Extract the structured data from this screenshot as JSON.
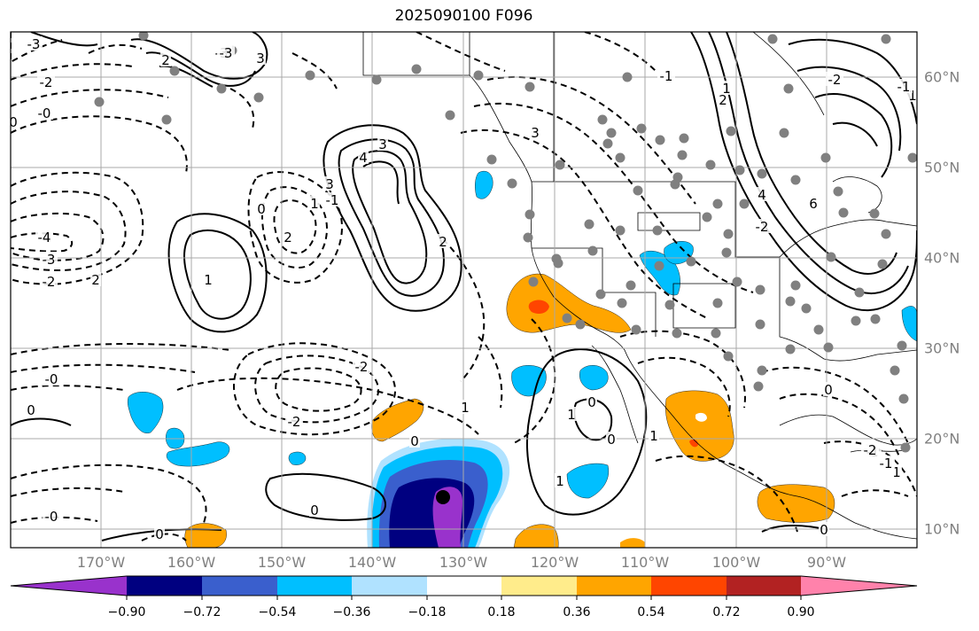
{
  "title": "2025090100 F096",
  "map": {
    "region": "Eastern Pacific and North America",
    "lon_labels": [
      "170°W",
      "160°W",
      "150°W",
      "140°W",
      "130°W",
      "120°W",
      "110°W",
      "100°W",
      "90°W"
    ],
    "lat_labels": [
      "60°N",
      "50°N",
      "40°N",
      "30°N",
      "20°N",
      "10°N"
    ],
    "contour_labels": [
      "-3",
      "-3",
      "2",
      "-2",
      "-0",
      "0",
      "-4",
      "-3",
      "-2",
      "2",
      "0",
      "1",
      "2",
      "-3",
      "3",
      "4",
      "3",
      "-0",
      "0",
      "2",
      "1",
      "1",
      "-2",
      "3",
      "-3",
      "3",
      "2",
      "6",
      "4",
      "1",
      "0",
      "0",
      "-0",
      "0",
      "-2",
      "1",
      "-1",
      "-2",
      "-1",
      "0",
      "1",
      "0",
      "0",
      "0",
      "1",
      "1",
      "-1",
      "1",
      "-2",
      "-1",
      "-2",
      "-1"
    ],
    "fill_colors": {
      "purple": "#9932cc",
      "navy": "#000080",
      "blue": "#3a5fcd",
      "deepskyblue": "#00bfff",
      "lightblue": "#b0e2ff",
      "white": "#ffffff",
      "yellow": "#ffec8b",
      "orange": "#ffa500",
      "orangered": "#ff4500",
      "firebrick": "#b22222",
      "pink": "#ff82ab"
    }
  },
  "colorbar": {
    "ticks": [
      "−0.90",
      "−0.72",
      "−0.54",
      "−0.36",
      "−0.18",
      "0.18",
      "0.36",
      "0.54",
      "0.72",
      "0.90"
    ]
  }
}
